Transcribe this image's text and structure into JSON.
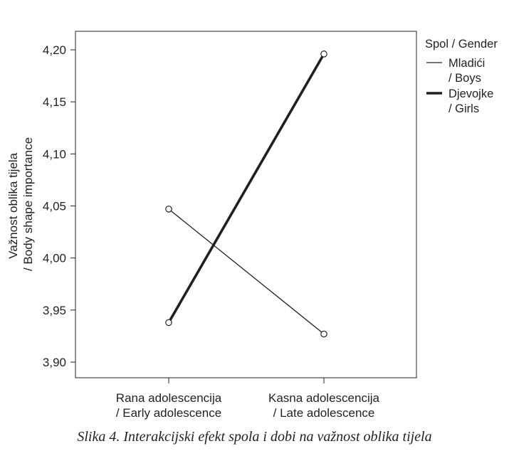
{
  "chart_data": {
    "type": "line",
    "categories": [
      [
        "Rana adolescencija",
        "/ Early adolescence"
      ],
      [
        "Kasna adolescencija",
        "/ Late adolescence"
      ]
    ],
    "series": [
      {
        "name": [
          "Mladići",
          "/ Boys"
        ],
        "values": [
          4.047,
          3.927
        ],
        "style": "thin"
      },
      {
        "name": [
          "Djevojke",
          "/ Girls"
        ],
        "values": [
          3.938,
          4.196
        ],
        "style": "thick"
      }
    ],
    "ylabel": [
      "Važnost oblika tijela",
      "/ Body shape importance"
    ],
    "yticks": [
      "3,90",
      "3,95",
      "4,00",
      "4,05",
      "4,10",
      "4,15",
      "4,20"
    ],
    "ylim": [
      3.88,
      4.245
    ],
    "legend_title": "Spol / Gender",
    "legend_position": "right, outside",
    "grid": false,
    "line_color": "#231f20"
  },
  "caption": "Slika 4. Interakcijski efekt spola i dobi na važnost oblika tijela"
}
